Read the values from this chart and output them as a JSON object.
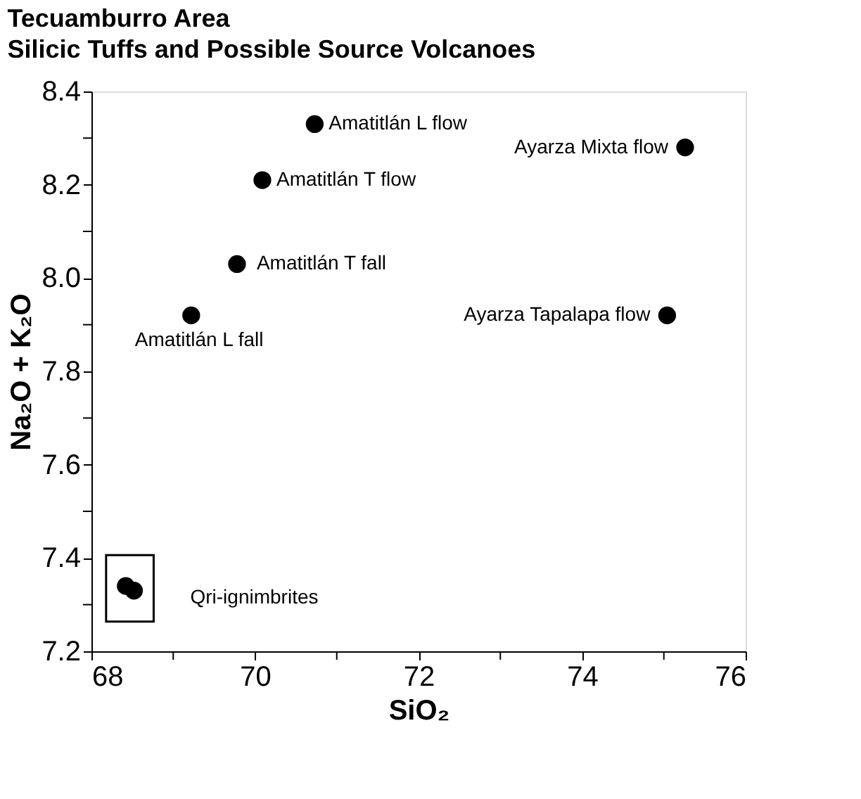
{
  "chart_data": {
    "type": "scatter",
    "title": "Tecuamburro Area",
    "subtitle": "Silicic Tuffs and Possible Source Volcanoes",
    "xlabel": "SiO₂",
    "ylabel": "Na₂O + K₂O",
    "series": [
      {
        "name": "Amatitlán L flow",
        "color": "#000000",
        "x": [
          70.73
        ],
        "values": [
          8.33
        ]
      },
      {
        "name": "Ayarza Mixta flow",
        "color": "#000000",
        "x": [
          75.26
        ],
        "values": [
          8.28
        ]
      },
      {
        "name": "Amatitlán T flow",
        "color": "#000000",
        "x": [
          70.09
        ],
        "values": [
          8.21
        ]
      },
      {
        "name": "Amatitlán T fall",
        "color": "#000000",
        "x": [
          69.78
        ],
        "values": [
          8.03
        ]
      },
      {
        "name": "Amatitlán L fall",
        "color": "#000000",
        "x": [
          69.22
        ],
        "values": [
          7.92
        ]
      },
      {
        "name": "Ayarza Tapalapa flow",
        "color": "#000000",
        "x": [
          75.04
        ],
        "values": [
          7.92
        ]
      },
      {
        "name": "Qri-ignimbrites",
        "color": "#000000",
        "x": [
          68.42,
          68.52
        ],
        "values": [
          7.34,
          7.33
        ]
      }
    ],
    "xlim": [
      68,
      76
    ],
    "ylim": [
      7.2,
      8.4
    ],
    "xticks": [
      68,
      {
        "value": 69,
        "label": null
      },
      70,
      {
        "value": 71,
        "label": null
      },
      72,
      {
        "value": 73,
        "label": null
      },
      74,
      {
        "value": 75,
        "label": null
      },
      76
    ],
    "yticks": [
      7.2,
      {
        "value": 7.3,
        "label": null
      },
      7.4,
      {
        "value": 7.5,
        "label": null
      },
      7.6,
      {
        "value": 7.7,
        "label": null
      },
      7.8,
      {
        "value": 7.9,
        "label": null
      },
      {
        "value": 8.0,
        "label": "8.0"
      },
      {
        "value": 8.1,
        "label": null
      },
      8.2,
      {
        "value": 8.3,
        "label": null
      },
      8.4
    ],
    "grid": false,
    "legend": false,
    "marker": "circle"
  }
}
